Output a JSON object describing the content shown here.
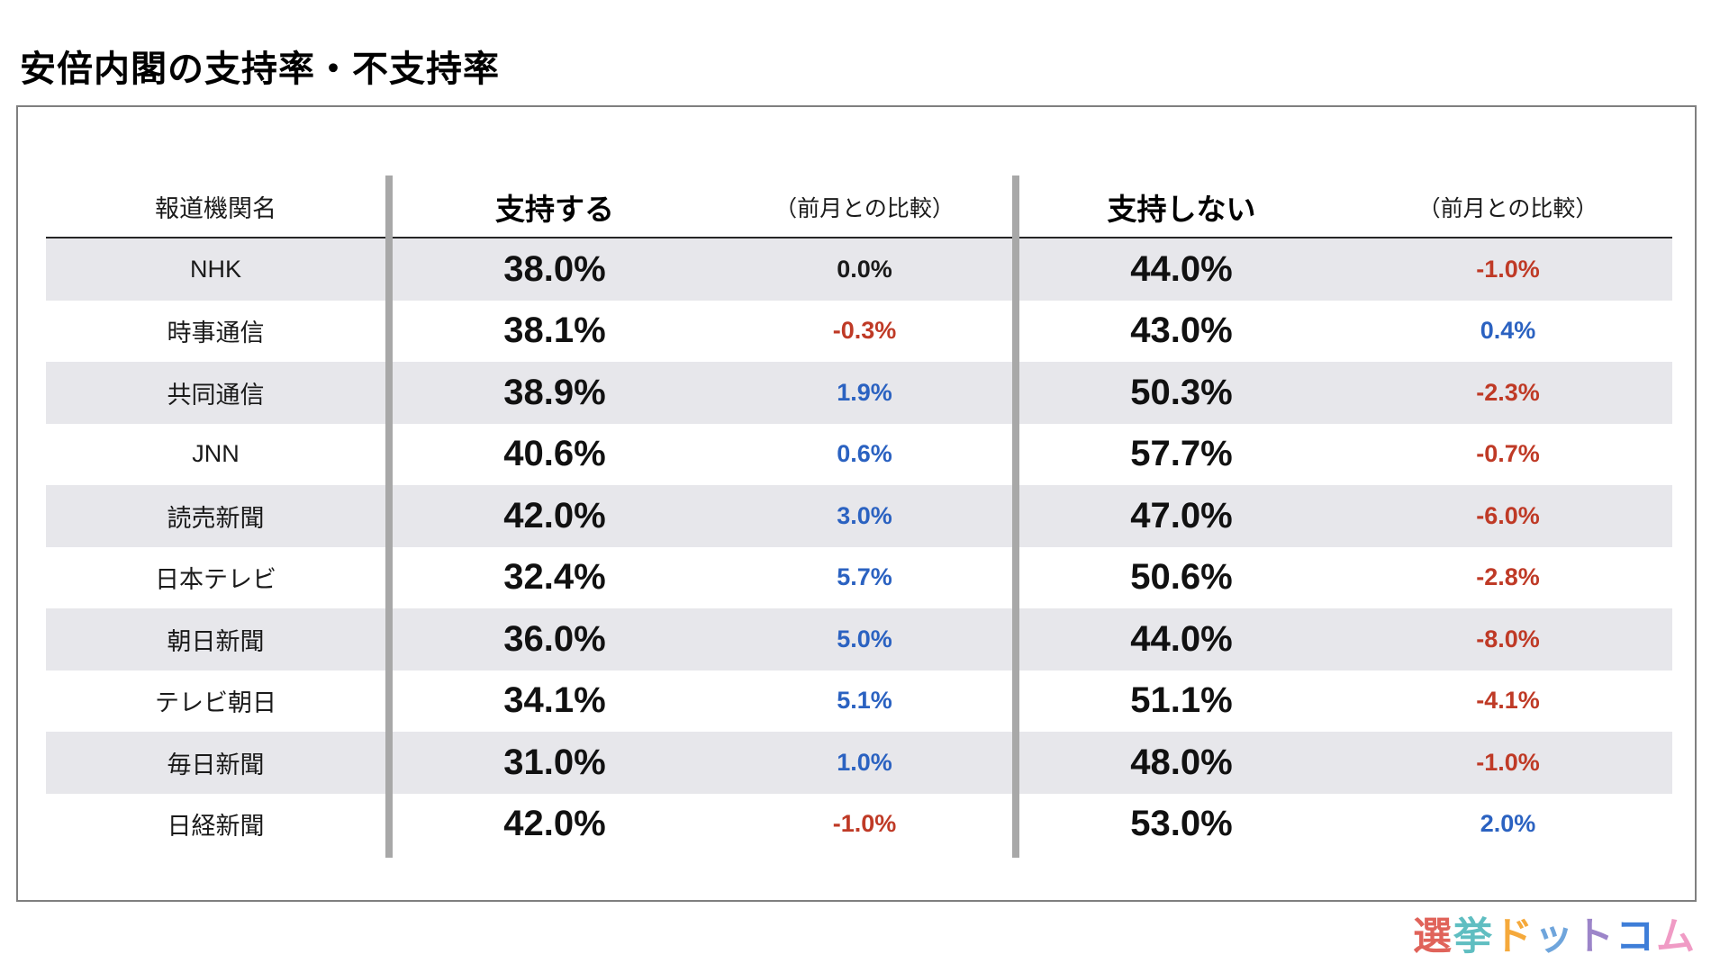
{
  "title": "安倍内閣の支持率・不支持率",
  "chart_data": {
    "type": "table",
    "title": "安倍内閣の支持率・不支持率",
    "columns": [
      "報道機関名",
      "支持する",
      "（前月との比較）",
      "支持しない",
      "（前月との比較）"
    ],
    "rows": [
      {
        "name": "NHK",
        "support": "38.0%",
        "support_change": "0.0%",
        "disapprove": "44.0%",
        "disapprove_change": "-1.0%"
      },
      {
        "name": "時事通信",
        "support": "38.1%",
        "support_change": "-0.3%",
        "disapprove": "43.0%",
        "disapprove_change": "0.4%"
      },
      {
        "name": "共同通信",
        "support": "38.9%",
        "support_change": "1.9%",
        "disapprove": "50.3%",
        "disapprove_change": "-2.3%"
      },
      {
        "name": "JNN",
        "support": "40.6%",
        "support_change": "0.6%",
        "disapprove": "57.7%",
        "disapprove_change": "-0.7%"
      },
      {
        "name": "読売新聞",
        "support": "42.0%",
        "support_change": "3.0%",
        "disapprove": "47.0%",
        "disapprove_change": "-6.0%"
      },
      {
        "name": "日本テレビ",
        "support": "32.4%",
        "support_change": "5.7%",
        "disapprove": "50.6%",
        "disapprove_change": "-2.8%"
      },
      {
        "name": "朝日新聞",
        "support": "36.0%",
        "support_change": "5.0%",
        "disapprove": "44.0%",
        "disapprove_change": "-8.0%"
      },
      {
        "name": "テレビ朝日",
        "support": "34.1%",
        "support_change": "5.1%",
        "disapprove": "51.1%",
        "disapprove_change": "-4.1%"
      },
      {
        "name": "毎日新聞",
        "support": "31.0%",
        "support_change": "1.0%",
        "disapprove": "48.0%",
        "disapprove_change": "-1.0%"
      },
      {
        "name": "日経新聞",
        "support": "42.0%",
        "support_change": "-1.0%",
        "disapprove": "53.0%",
        "disapprove_change": "2.0%"
      }
    ]
  },
  "logo": {
    "text": "選挙ドットコム",
    "chars": [
      {
        "t": "選",
        "c": "#e0635a"
      },
      {
        "t": "挙",
        "c": "#5fbec1"
      },
      {
        "t": "ド",
        "c": "#f5a93b"
      },
      {
        "t": "ッ",
        "c": "#6fa5dc"
      },
      {
        "t": "ト",
        "c": "#9c85c9"
      },
      {
        "t": "コ",
        "c": "#3e7ed8"
      },
      {
        "t": "ム",
        "c": "#f09bc5"
      }
    ]
  },
  "colors": {
    "positive_change": "#2b62c1",
    "negative_change": "#bf3a26",
    "neutral_change": "#1a1a1a",
    "row_stripe": "#e7e7eb",
    "column_divider": "#a8a8a8",
    "box_border": "#7f7f7f"
  }
}
